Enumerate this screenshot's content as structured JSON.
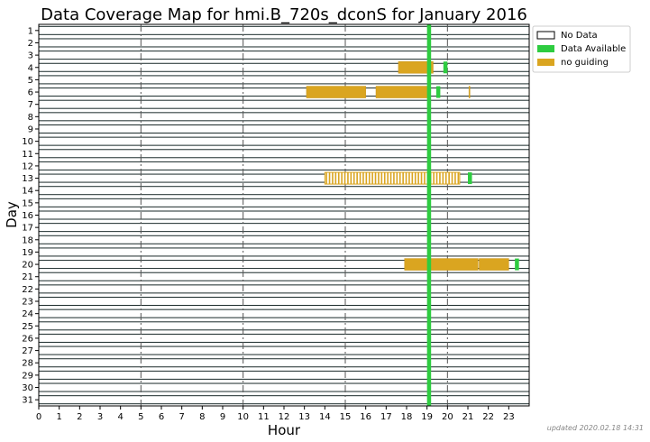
{
  "chart_data": {
    "type": "bar",
    "title": "Data Coverage Map for hmi.B_720s_dconS for January 2016",
    "xlabel": "Hour",
    "ylabel": "Day",
    "xlim": [
      0,
      24
    ],
    "xticks": [
      0,
      1,
      2,
      3,
      4,
      5,
      6,
      7,
      8,
      9,
      10,
      11,
      12,
      13,
      14,
      15,
      16,
      17,
      18,
      19,
      20,
      21,
      22,
      23
    ],
    "xtick_labels": [
      "0",
      "1",
      "2",
      "3",
      "4",
      "5",
      "6",
      "7",
      "8",
      "9",
      "10",
      "11",
      "12",
      "13",
      "14",
      "15",
      "16",
      "17",
      "18",
      "19",
      "20",
      "21",
      "22",
      "23"
    ],
    "days": [
      "1",
      "2",
      "3",
      "4",
      "5",
      "6",
      "7",
      "8",
      "9",
      "10",
      "11",
      "12",
      "13",
      "14",
      "15",
      "16",
      "17",
      "18",
      "19",
      "20",
      "21",
      "22",
      "23",
      "24",
      "25",
      "26",
      "27",
      "28",
      "29",
      "30",
      "31"
    ],
    "vertical_dashed_lines_at_hour": [
      5,
      10,
      15,
      20
    ],
    "legend": {
      "placement": "upper right, outside plot",
      "entries": [
        {
          "label": "No Data",
          "color": "#ffffff"
        },
        {
          "label": "Data Available",
          "color": "#2ecc40"
        },
        {
          "label": "no guiding",
          "color": "#daa520"
        }
      ]
    },
    "data_available_all_days": [
      19.0,
      19.2
    ],
    "data_available_extra": [
      {
        "day": 4,
        "start": 19.8,
        "end": 20.0
      },
      {
        "day": 6,
        "start": 19.45,
        "end": 19.65
      },
      {
        "day": 13,
        "start": 21.0,
        "end": 21.2
      },
      {
        "day": 20,
        "start": 23.3,
        "end": 23.5
      }
    ],
    "no_guiding": [
      {
        "day": 4,
        "start": 17.6,
        "end": 19.3
      },
      {
        "day": 6,
        "start": 13.1,
        "end": 16.0
      },
      {
        "day": 6,
        "start": 16.5,
        "end": 19.1
      },
      {
        "day": 6,
        "start": 21.05,
        "end": 21.1
      },
      {
        "day": 20,
        "start": 17.9,
        "end": 21.5
      },
      {
        "day": 20,
        "start": 21.55,
        "end": 23.0
      }
    ],
    "no_guiding_striped": [
      {
        "day": 13,
        "start": 14.0,
        "end": 20.6
      }
    ]
  },
  "footer": {
    "updated": "updated 2020.02.18 14:31"
  }
}
